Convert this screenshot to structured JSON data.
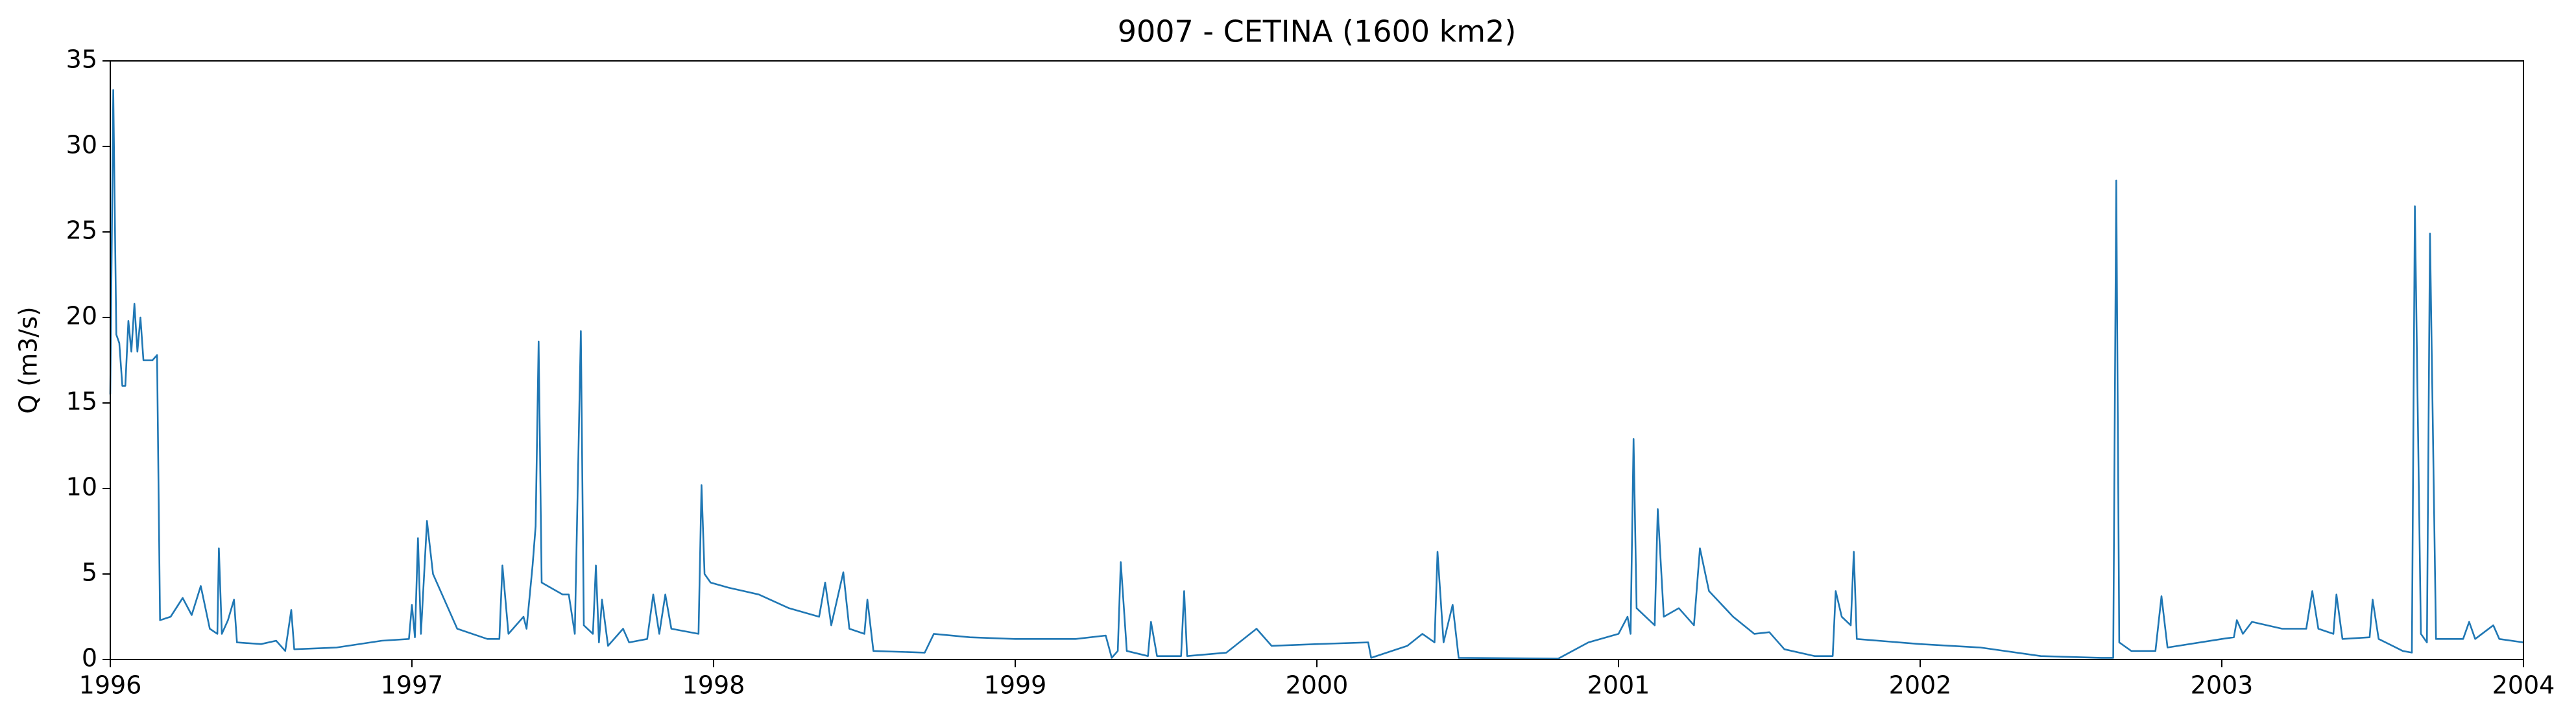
{
  "chart_data": {
    "type": "line",
    "title": "9007 - CETINA (1600 km2)",
    "ylabel": "Q (m3/s)",
    "color": "#1f77b4",
    "xlim": [
      1996,
      2004
    ],
    "xticks": [
      1996,
      1997,
      1998,
      1999,
      2000,
      2001,
      2002,
      2003,
      2004
    ],
    "ylim": [
      0,
      35
    ],
    "yticks": [
      0,
      5,
      10,
      15,
      20,
      25,
      30,
      35
    ],
    "grid": false,
    "x": [
      1996.0,
      1996.01,
      1996.02,
      1996.03,
      1996.04,
      1996.05,
      1996.06,
      1996.07,
      1996.08,
      1996.09,
      1996.1,
      1996.11,
      1996.14,
      1996.155,
      1996.165,
      1996.2,
      1996.24,
      1996.27,
      1996.3,
      1996.33,
      1996.355,
      1996.36,
      1996.37,
      1996.39,
      1996.41,
      1996.42,
      1996.5,
      1996.55,
      1996.58,
      1996.6,
      1996.61,
      1996.75,
      1996.9,
      1996.99,
      1997.0,
      1997.01,
      1997.02,
      1997.03,
      1997.05,
      1997.07,
      1997.15,
      1997.25,
      1997.29,
      1997.3,
      1997.32,
      1997.37,
      1997.38,
      1997.4,
      1997.41,
      1997.42,
      1997.43,
      1997.5,
      1997.52,
      1997.54,
      1997.56,
      1997.57,
      1997.6,
      1997.61,
      1997.62,
      1997.63,
      1997.65,
      1997.7,
      1997.72,
      1997.78,
      1997.8,
      1997.82,
      1997.84,
      1997.86,
      1997.95,
      1997.96,
      1997.97,
      1997.99,
      1998.05,
      1998.15,
      1998.25,
      1998.35,
      1998.37,
      1998.39,
      1998.43,
      1998.45,
      1998.5,
      1998.51,
      1998.53,
      1998.7,
      1998.73,
      1998.85,
      1999.0,
      1999.2,
      1999.3,
      1999.32,
      1999.34,
      1999.35,
      1999.37,
      1999.44,
      1999.45,
      1999.47,
      1999.55,
      1999.56,
      1999.57,
      1999.7,
      1999.8,
      1999.85,
      2000.0,
      2000.17,
      2000.18,
      2000.3,
      2000.35,
      2000.39,
      2000.4,
      2000.42,
      2000.45,
      2000.47,
      2000.8,
      2000.9,
      2001.0,
      2001.03,
      2001.04,
      2001.05,
      2001.06,
      2001.12,
      2001.13,
      2001.15,
      2001.2,
      2001.25,
      2001.27,
      2001.3,
      2001.38,
      2001.45,
      2001.5,
      2001.55,
      2001.65,
      2001.71,
      2001.72,
      2001.74,
      2001.77,
      2001.78,
      2001.79,
      2002.0,
      2002.2,
      2002.4,
      2002.6,
      2002.64,
      2002.65,
      2002.66,
      2002.7,
      2002.78,
      2002.8,
      2002.82,
      2003.0,
      2003.04,
      2003.05,
      2003.07,
      2003.1,
      2003.2,
      2003.28,
      2003.3,
      2003.32,
      2003.37,
      2003.38,
      2003.4,
      2003.49,
      2003.5,
      2003.52,
      2003.6,
      2003.63,
      2003.64,
      2003.66,
      2003.68,
      2003.69,
      2003.71,
      2003.8,
      2003.82,
      2003.84,
      2003.9,
      2003.92,
      2004.0
    ],
    "values": [
      15.5,
      33.3,
      19,
      18.5,
      16,
      16,
      19.8,
      18,
      20.8,
      18,
      20,
      17.5,
      17.5,
      17.8,
      2.3,
      2.5,
      3.6,
      2.6,
      4.3,
      1.8,
      1.5,
      6.5,
      1.5,
      2.3,
      3.5,
      1,
      0.9,
      1.1,
      0.5,
      2.9,
      0.6,
      0.7,
      1.1,
      1.2,
      3.2,
      1.3,
      7.1,
      1.5,
      8.1,
      5,
      1.8,
      1.2,
      1.2,
      5.5,
      1.5,
      2.5,
      1.8,
      5.5,
      7.8,
      18.6,
      4.5,
      3.8,
      3.8,
      1.5,
      19.2,
      2,
      1.5,
      5.5,
      1,
      3.5,
      0.8,
      1.8,
      1,
      1.2,
      3.8,
      1.5,
      3.8,
      1.8,
      1.5,
      10.2,
      5,
      4.5,
      4.2,
      3.8,
      3,
      2.5,
      4.5,
      2,
      5.1,
      1.8,
      1.5,
      3.5,
      0.5,
      0.4,
      1.5,
      1.3,
      1.2,
      1.2,
      1.4,
      0.1,
      0.5,
      5.7,
      0.5,
      0.2,
      2.2,
      0.2,
      0.2,
      4,
      0.2,
      0.4,
      1.8,
      0.8,
      0.9,
      1.0,
      0.1,
      0.8,
      1.5,
      1,
      6.3,
      1,
      3.2,
      0.1,
      0.05,
      1.0,
      1.5,
      2.5,
      1.5,
      12.9,
      3,
      2,
      8.8,
      2.5,
      3,
      2,
      6.5,
      4,
      2.5,
      1.5,
      1.6,
      0.6,
      0.2,
      0.2,
      4,
      2.5,
      2,
      6.3,
      1.2,
      0.9,
      0.7,
      0.2,
      0.1,
      0.1,
      28,
      1,
      0.5,
      0.5,
      3.7,
      0.7,
      1.2,
      1.3,
      2.3,
      1.5,
      2.2,
      1.8,
      1.8,
      4,
      1.8,
      1.5,
      3.8,
      1.2,
      1.3,
      3.5,
      1.2,
      0.5,
      0.4,
      26.5,
      1.5,
      1,
      24.9,
      1.2,
      1.2,
      2.2,
      1.2,
      2,
      1.2,
      1.0
    ]
  }
}
